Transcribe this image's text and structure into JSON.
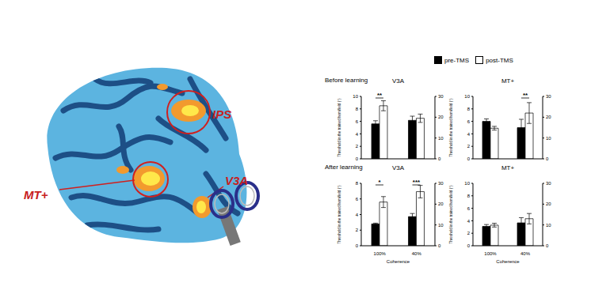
{
  "brain_labels": [
    "IPS",
    "MT+",
    "V3A"
  ],
  "row_labels": [
    "Before learning",
    "After learning"
  ],
  "chart_data": [
    {
      "type": "bar",
      "title": "V3A",
      "y_label": "Threshold in the trained hemifield (°)",
      "categories": [
        null,
        null
      ],
      "series": [
        {
          "name": "pre-TMS",
          "color": "#000000",
          "values": [
            5.6,
            null
          ],
          "errors": [
            0.5,
            null
          ]
        },
        {
          "name": "post-TMS",
          "color": "#ffffff",
          "values": [
            8.5,
            null
          ],
          "errors": [
            0.8,
            null
          ]
        },
        {
          "name": "pre-TMS",
          "color": "#000000",
          "axis": "y2",
          "values": [
            null,
            18.5
          ],
          "errors": [
            null,
            2
          ]
        },
        {
          "name": "post-TMS",
          "color": "#ffffff",
          "axis": "y2",
          "values": [
            null,
            19.5
          ],
          "errors": [
            null,
            2
          ]
        }
      ],
      "significance": [
        "**",
        null
      ],
      "ylim": [
        0,
        10
      ],
      "yticks": [
        0,
        2,
        4,
        6,
        8,
        10
      ],
      "y2lim": [
        0,
        30
      ],
      "y2ticks": [
        0,
        10,
        20,
        30
      ]
    },
    {
      "type": "bar",
      "title": "MT+",
      "y_label": "Threshold in the trained hemifield (°)",
      "categories": [
        null,
        null
      ],
      "series": [
        {
          "name": "pre-TMS",
          "color": "#000000",
          "values": [
            6.0,
            null
          ],
          "errors": [
            0.4,
            null
          ]
        },
        {
          "name": "post-TMS",
          "color": "#ffffff",
          "values": [
            4.9,
            null
          ],
          "errors": [
            0.3,
            null
          ]
        },
        {
          "name": "pre-TMS",
          "color": "#000000",
          "axis": "y2",
          "values": [
            null,
            15
          ],
          "errors": [
            null,
            4
          ]
        },
        {
          "name": "post-TMS",
          "color": "#ffffff",
          "axis": "y2",
          "values": [
            null,
            22
          ],
          "errors": [
            null,
            5
          ]
        }
      ],
      "significance": [
        null,
        "**"
      ],
      "ylim": [
        0,
        10
      ],
      "yticks": [
        0,
        2,
        4,
        6,
        8,
        10
      ],
      "y2lim": [
        0,
        30
      ],
      "y2ticks": [
        0,
        10,
        20,
        30
      ]
    },
    {
      "type": "bar",
      "title": "V3A",
      "y_label": "Threshold in the trained hemifield (°)",
      "x_label": "Coherence",
      "categories": [
        "100%",
        "40%"
      ],
      "series": [
        {
          "name": "pre-TMS",
          "color": "#000000",
          "values": [
            2.8,
            null
          ],
          "errors": [
            0.1,
            null
          ]
        },
        {
          "name": "post-TMS",
          "color": "#ffffff",
          "values": [
            5.6,
            null
          ],
          "errors": [
            0.7,
            null
          ]
        },
        {
          "name": "pre-TMS",
          "color": "#000000",
          "axis": "y2",
          "values": [
            null,
            14
          ],
          "errors": [
            null,
            1.5
          ]
        },
        {
          "name": "post-TMS",
          "color": "#ffffff",
          "axis": "y2",
          "values": [
            null,
            26
          ],
          "errors": [
            null,
            3
          ]
        }
      ],
      "significance": [
        "*",
        "***"
      ],
      "ylim": [
        0,
        8
      ],
      "yticks": [
        0,
        2,
        4,
        6,
        8
      ],
      "y2lim": [
        0,
        30
      ],
      "y2ticks": [
        0,
        10,
        20,
        30
      ]
    },
    {
      "type": "bar",
      "title": "MT+",
      "y_label": "Threshold in the trained hemifield (°)",
      "x_label": "Coherence",
      "categories": [
        "100%",
        "40%"
      ],
      "series": [
        {
          "name": "pre-TMS",
          "color": "#000000",
          "values": [
            3.1,
            null
          ],
          "errors": [
            0.3,
            null
          ]
        },
        {
          "name": "post-TMS",
          "color": "#ffffff",
          "values": [
            3.3,
            null
          ],
          "errors": [
            0.3,
            null
          ]
        },
        {
          "name": "pre-TMS",
          "color": "#000000",
          "axis": "y2",
          "values": [
            null,
            11
          ],
          "errors": [
            null,
            2.5
          ]
        },
        {
          "name": "post-TMS",
          "color": "#ffffff",
          "axis": "y2",
          "values": [
            null,
            13
          ],
          "errors": [
            null,
            2.5
          ]
        }
      ],
      "significance": [
        null,
        null
      ],
      "ylim": [
        0,
        10
      ],
      "yticks": [
        0,
        2,
        4,
        6,
        8,
        10
      ],
      "y2lim": [
        0,
        30
      ],
      "y2ticks": [
        0,
        10,
        20,
        30
      ]
    }
  ]
}
